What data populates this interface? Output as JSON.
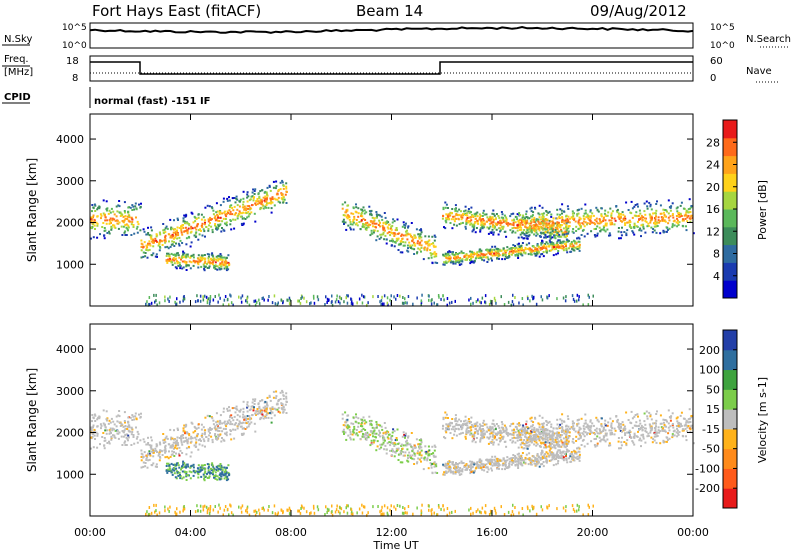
{
  "header": {
    "title": "Fort Hays East (fitACF)",
    "beam": "Beam 14",
    "date": "09/Aug/2012"
  },
  "strip_labels": {
    "nsky": "N.Sky",
    "nsearch": "N.Search",
    "freq": "Freq.",
    "freq_unit": "[MHz]",
    "nave": "Nave",
    "cpid": "CPID",
    "cpid_text": "normal (fast) -151 IF",
    "nsky_top": "10^5",
    "nsky_bot": "10^0",
    "nsearch_top": "10^5",
    "nsearch_bot": "10^0",
    "freq_top": "18",
    "freq_bot": "8",
    "nave_top": "60",
    "nave_bot": "0"
  },
  "colors": {
    "power": [
      "#0000cc",
      "#1a3bb0",
      "#2e6ba0",
      "#3c8c5a",
      "#5bb85b",
      "#a6d640",
      "#ffd21a",
      "#ffa31a",
      "#ff6a1a",
      "#e81a1a"
    ],
    "velocity": [
      "#e81a1a",
      "#ff5a1a",
      "#ff8a1a",
      "#ffb21a",
      "#bdbdbd",
      "#7ccd4a",
      "#3ea33e",
      "#2f6f9f",
      "#233fa8"
    ]
  },
  "chart_data": [
    {
      "type": "heatmap",
      "panel": "power",
      "ylabel": "Slant Range [km]",
      "xlabel": "Time UT",
      "xticks": [
        "00:00",
        "04:00",
        "08:00",
        "12:00",
        "16:00",
        "20:00",
        "00:00"
      ],
      "yticks": [
        "1000",
        "2000",
        "3000",
        "4000"
      ],
      "ylim": [
        0,
        4600
      ],
      "xlim_hours": [
        0,
        24
      ],
      "colorbar": {
        "label": "Power [dB]",
        "ticks": [
          "28",
          "24",
          "20",
          "16",
          "12",
          "8",
          "4"
        ]
      },
      "scatter_bands": [
        {
          "start_h": 0.0,
          "end_h": 2.0,
          "range_start": 2100,
          "range_end": 2100,
          "width": 500
        },
        {
          "start_h": 2.0,
          "end_h": 7.8,
          "range_start": 1450,
          "range_end": 2750,
          "width": 450
        },
        {
          "start_h": 3.0,
          "end_h": 5.5,
          "range_start": 1150,
          "range_end": 1050,
          "width": 250
        },
        {
          "start_h": 10.0,
          "end_h": 13.8,
          "range_start": 2300,
          "range_end": 1350,
          "width": 450
        },
        {
          "start_h": 14.0,
          "end_h": 19.0,
          "range_start": 2200,
          "range_end": 1800,
          "width": 350
        },
        {
          "start_h": 14.0,
          "end_h": 19.5,
          "range_start": 1150,
          "range_end": 1500,
          "width": 200
        },
        {
          "start_h": 17.0,
          "end_h": 24.0,
          "range_start": 2000,
          "range_end": 2150,
          "width": 450
        }
      ]
    },
    {
      "type": "heatmap",
      "panel": "velocity",
      "ylabel": "Slant Range [km]",
      "xlabel": "Time UT",
      "xticks": [
        "00:00",
        "04:00",
        "08:00",
        "12:00",
        "16:00",
        "20:00",
        "00:00"
      ],
      "yticks": [
        "1000",
        "2000",
        "3000",
        "4000"
      ],
      "ylim": [
        0,
        4600
      ],
      "xlim_hours": [
        0,
        24
      ],
      "colorbar": {
        "label": "Velocity [m s-1]",
        "ticks": [
          "200",
          "100",
          "50",
          "15",
          "-15",
          "-50",
          "-100",
          "-200"
        ]
      }
    }
  ]
}
